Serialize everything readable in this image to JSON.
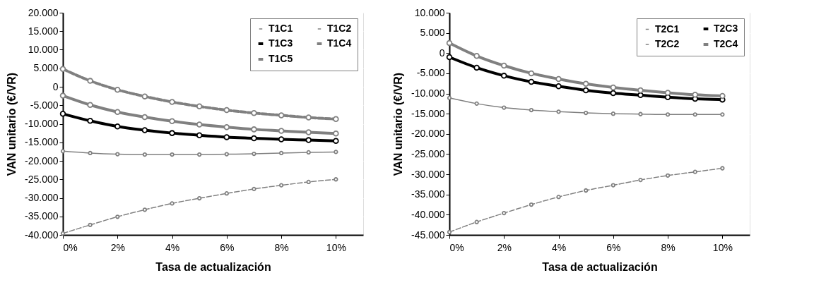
{
  "chart_data": [
    {
      "type": "line",
      "xlabel": "Tasa de actualización",
      "ylabel": "VAN  unitario (€/VR)",
      "x": [
        0,
        1,
        2,
        3,
        4,
        5,
        6,
        7,
        8,
        9,
        10
      ],
      "xlim": [
        0,
        11
      ],
      "xticks": [
        {
          "value": 0,
          "label": "0%"
        },
        {
          "value": 2,
          "label": "2%"
        },
        {
          "value": 4,
          "label": "4%"
        },
        {
          "value": 6,
          "label": "6%"
        },
        {
          "value": 8,
          "label": "8%"
        },
        {
          "value": 10,
          "label": "10%"
        }
      ],
      "ylim": [
        -40000,
        20000
      ],
      "yticks": [
        {
          "value": -40000,
          "label": "-40.000"
        },
        {
          "value": -35000,
          "label": "-35.000"
        },
        {
          "value": -30000,
          "label": "-30.000"
        },
        {
          "value": -25000,
          "label": "-25.000"
        },
        {
          "value": -20000,
          "label": "-20.000"
        },
        {
          "value": -15000,
          "label": "-15.000"
        },
        {
          "value": -10000,
          "label": "-10.000"
        },
        {
          "value": -5000,
          "label": "-5.000"
        },
        0,
        {
          "value": 5000,
          "label": "5.000"
        },
        {
          "value": 10000,
          "label": "10.000"
        },
        {
          "value": 15000,
          "label": "15.000"
        },
        {
          "value": 20000,
          "label": "20.000"
        }
      ],
      "grid": true,
      "legend": "top right",
      "marker": "circle",
      "series": [
        {
          "name": "T1C1",
          "color": "#808080",
          "line_style": "dashed",
          "values": [
            -39600,
            -37300,
            -35100,
            -33200,
            -31500,
            -30100,
            -28800,
            -27600,
            -26600,
            -25700,
            -25000
          ]
        },
        {
          "name": "T1C2",
          "color": "#808080",
          "line_style": "solid",
          "values": [
            -17400,
            -17900,
            -18200,
            -18300,
            -18300,
            -18300,
            -18200,
            -18100,
            -17900,
            -17700,
            -17600
          ]
        },
        {
          "name": "T1C3",
          "color": "#000000",
          "line_style": "solid",
          "values": [
            -7300,
            -9200,
            -10700,
            -11700,
            -12500,
            -13100,
            -13600,
            -13900,
            -14200,
            -14400,
            -14600
          ]
        },
        {
          "name": "T1C4",
          "color": "#808080",
          "line_style": "solid",
          "values": [
            -2400,
            -4900,
            -6800,
            -8200,
            -9300,
            -10200,
            -10900,
            -11500,
            -11900,
            -12300,
            -12600
          ]
        },
        {
          "name": "T1C5",
          "color": "#808080",
          "line_style": "dashed",
          "values": [
            4800,
            1600,
            -800,
            -2600,
            -4100,
            -5300,
            -6300,
            -7100,
            -7700,
            -8300,
            -8700
          ]
        }
      ]
    },
    {
      "type": "line",
      "xlabel": "Tasa de actualización",
      "ylabel": "VAN  unitario (€/VR)",
      "x": [
        0,
        1,
        2,
        3,
        4,
        5,
        6,
        7,
        8,
        9,
        10
      ],
      "xlim": [
        0,
        11
      ],
      "xticks": [
        {
          "value": 0,
          "label": "0%"
        },
        {
          "value": 2,
          "label": "2%"
        },
        {
          "value": 4,
          "label": "4%"
        },
        {
          "value": 6,
          "label": "6%"
        },
        {
          "value": 8,
          "label": "8%"
        },
        {
          "value": 10,
          "label": "10%"
        }
      ],
      "ylim": [
        -45000,
        10000
      ],
      "yticks": [
        {
          "value": -45000,
          "label": "-45.000"
        },
        {
          "value": -40000,
          "label": "-40.000"
        },
        {
          "value": -35000,
          "label": "-35.000"
        },
        {
          "value": -30000,
          "label": "-30.000"
        },
        {
          "value": -25000,
          "label": "-25.000"
        },
        {
          "value": -20000,
          "label": "-20.000"
        },
        {
          "value": -15000,
          "label": "-15.000"
        },
        {
          "value": -10000,
          "label": "-10.000"
        },
        {
          "value": -5000,
          "label": "-5.000"
        },
        0,
        {
          "value": 5000,
          "label": "5.000"
        },
        {
          "value": 10000,
          "label": "10.000"
        }
      ],
      "grid": true,
      "legend": "top right",
      "marker": "circle",
      "series": [
        {
          "name": "T2C1",
          "color": "#808080",
          "line_style": "dashed",
          "values": [
            -44300,
            -41800,
            -39600,
            -37500,
            -35600,
            -34000,
            -32700,
            -31400,
            -30300,
            -29400,
            -28500
          ]
        },
        {
          "name": "T2C3",
          "color": "#000000",
          "line_style": "solid",
          "values": [
            -1000,
            -3600,
            -5600,
            -7100,
            -8200,
            -9200,
            -9900,
            -10400,
            -10900,
            -11300,
            -11500
          ]
        },
        {
          "name": "T2C2",
          "color": "#808080",
          "line_style": "solid",
          "values": [
            -11100,
            -12500,
            -13500,
            -14100,
            -14500,
            -14800,
            -15000,
            -15100,
            -15200,
            -15200,
            -15200
          ]
        },
        {
          "name": "T2C4",
          "color": "#808080",
          "line_style": "solid",
          "values": [
            2500,
            -700,
            -3100,
            -5000,
            -6400,
            -7600,
            -8500,
            -9200,
            -9800,
            -10300,
            -10600
          ]
        }
      ]
    }
  ]
}
